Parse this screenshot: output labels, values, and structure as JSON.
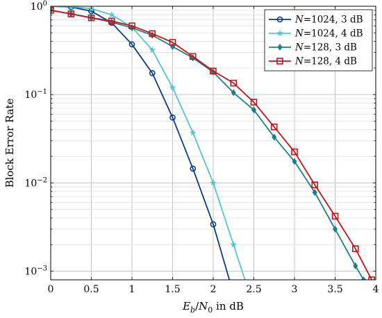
{
  "chart_data": {
    "type": "line",
    "title": "",
    "xlabel": "E_b/N_0 in dB",
    "ylabel": "Block Error Rate",
    "xlim": [
      0,
      4
    ],
    "ylim": [
      0.0008,
      1
    ],
    "yscale": "log",
    "grid": true,
    "legend_position": "top-right",
    "x_ticks": [
      "0",
      "0.5",
      "1",
      "1.5",
      "2",
      "2.5",
      "3",
      "3.5",
      "4"
    ],
    "series": [
      {
        "name": "N=1024, 3 dB",
        "color": "#0b3c85",
        "marker": "circle",
        "x": [
          0,
          0.25,
          0.5,
          0.75,
          1.0,
          1.25,
          1.5,
          1.75,
          2.0,
          2.25
        ],
        "y": [
          1.0,
          0.98,
          0.88,
          0.65,
          0.37,
          0.175,
          0.055,
          0.0145,
          0.0034,
          0.00055
        ]
      },
      {
        "name": "N=1024, 4 dB",
        "color": "#55c4cc",
        "marker": "star",
        "x": [
          0,
          0.25,
          0.5,
          0.75,
          1.0,
          1.25,
          1.5,
          1.75,
          2.0,
          2.25,
          2.4
        ],
        "y": [
          1.0,
          0.99,
          0.94,
          0.8,
          0.58,
          0.32,
          0.12,
          0.037,
          0.01,
          0.002,
          0.00075
        ]
      },
      {
        "name": "N=128, 3 dB",
        "color": "#1a8080",
        "marker": "diamond",
        "x": [
          0,
          0.25,
          0.5,
          0.75,
          1.0,
          1.25,
          1.5,
          1.75,
          2.0,
          2.25,
          2.5,
          2.75,
          3.0,
          3.25,
          3.5,
          3.75,
          3.85
        ],
        "y": [
          0.9,
          0.82,
          0.74,
          0.66,
          0.57,
          0.47,
          0.35,
          0.26,
          0.18,
          0.105,
          0.067,
          0.033,
          0.0175,
          0.0078,
          0.003,
          0.00115,
          0.0008
        ]
      },
      {
        "name": "N=128, 4 dB",
        "color": "#c0141c",
        "marker": "square",
        "x": [
          0,
          0.25,
          0.5,
          0.75,
          1.0,
          1.25,
          1.5,
          1.75,
          2.0,
          2.25,
          2.5,
          2.75,
          3.0,
          3.25,
          3.5,
          3.75,
          3.95
        ],
        "y": [
          0.9,
          0.82,
          0.74,
          0.68,
          0.6,
          0.49,
          0.39,
          0.27,
          0.185,
          0.135,
          0.082,
          0.043,
          0.0225,
          0.0095,
          0.0042,
          0.0018,
          0.0008
        ]
      }
    ]
  }
}
